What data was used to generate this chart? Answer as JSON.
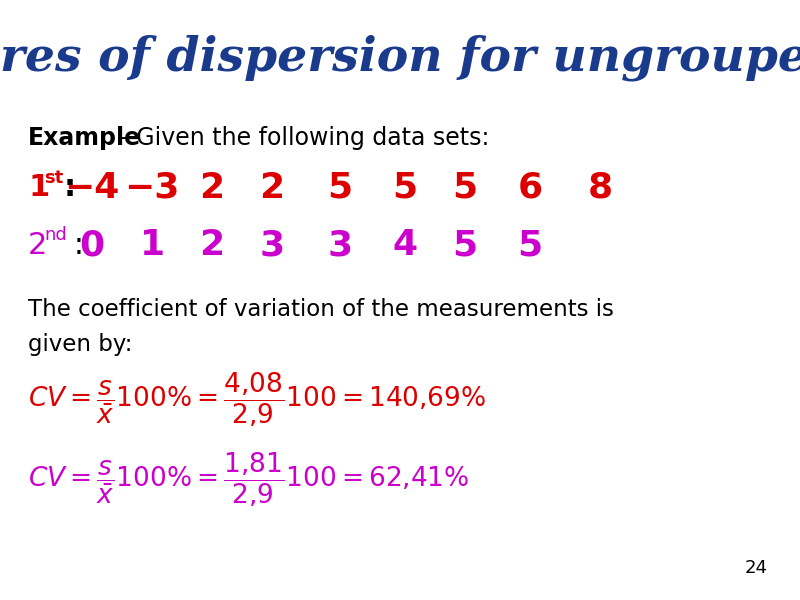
{
  "title": "Measures of dispersion for ungrouped data",
  "title_color": "#1a3a8c",
  "background_color": "#ffffff",
  "row1_values": [
    "−4",
    "−3",
    "2",
    "2",
    "5",
    "5",
    "5",
    "6",
    "8"
  ],
  "row1_color": "#dd0000",
  "row2_values": [
    "0",
    "1",
    "2",
    "3",
    "3",
    "4",
    "5",
    "5"
  ],
  "row2_color": "#cc00cc",
  "cv1_color": "#dd0000",
  "cv2_color": "#cc00cc",
  "page_number": "24"
}
